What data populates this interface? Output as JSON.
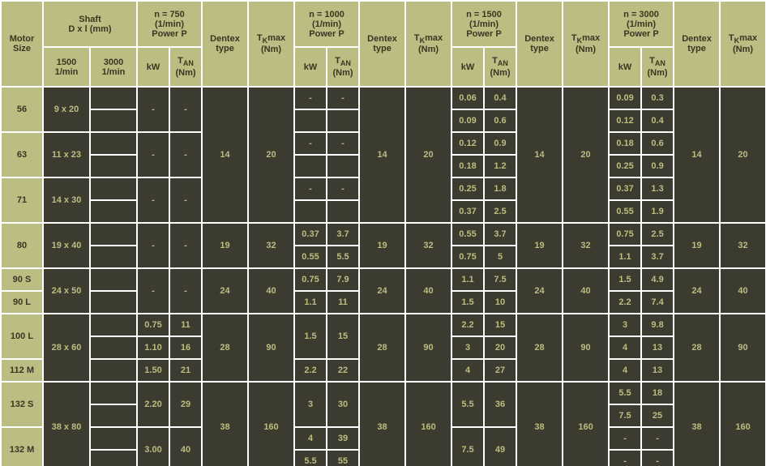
{
  "theme": {
    "header_bg": "#bcbd82",
    "header_fg": "#3b3522",
    "cell_bg": "#3b3b2f",
    "cell_fg": "#bcbd82",
    "border_spacing": 2,
    "font_family": "Verdana, Geneva, sans-serif",
    "font_size_main": 11,
    "font_size_sub": 9
  },
  "headers": {
    "motor_size": "Motor Size",
    "shaft_group": "Shaft\nD x l (mm)",
    "shaft_1500": "1500 1/min",
    "shaft_3000": "3000 1/min",
    "speed_groups": {
      "n750": "n = 750 (1/min) Power P",
      "n1000": "n = 1000 (1/min) Power P",
      "n1500": "n = 1500 (1/min) Power P",
      "n3000": "n = 3000 (1/min) Power P"
    },
    "kw": "kW",
    "tan": "T_AN (Nm)",
    "dentex": "Dentex type",
    "tkmax": "T_Kmax (Nm)"
  },
  "motor_sizes": [
    "56",
    "63",
    "71",
    "80",
    "90 S",
    "90 L",
    "100 L",
    "112 M",
    "132 S",
    "132 M"
  ],
  "shaft_1500": {
    "r56": "9 x 20",
    "r63": "11 x 23",
    "r71": "14 x 30",
    "r80": "19 x 40",
    "r90": "24 x 50",
    "r100": "28 x 60",
    "r132": "38 x 80"
  },
  "shaft_3000": {
    "r56": "",
    "r63": "",
    "r71": "",
    "r80": "",
    "r90S": "",
    "r90L": "",
    "r100L": "",
    "r112M": "",
    "r132S": "",
    "r132M": ""
  },
  "dentex_tkmax": {
    "g1": {
      "dentex": "14",
      "tkmax": "20"
    },
    "g80": {
      "dentex": "19",
      "tkmax": "32"
    },
    "g90": {
      "dentex": "24",
      "tkmax": "40"
    },
    "g100": {
      "dentex": "28",
      "tkmax": "90"
    },
    "g132": {
      "dentex": "38",
      "tkmax": "160"
    }
  },
  "n750": {
    "r56a": {
      "kw": "-",
      "tan": "-"
    },
    "r56b": {
      "kw": "",
      "tan": ""
    },
    "r63a": {
      "kw": "-",
      "tan": "-"
    },
    "r63b": {
      "kw": "",
      "tan": ""
    },
    "r71a": {
      "kw": "-",
      "tan": "-"
    },
    "r71b": {
      "kw": "",
      "tan": ""
    },
    "r80a": {
      "kw": "-",
      "tan": "-"
    },
    "r80b": {
      "kw": "",
      "tan": ""
    },
    "r90S": {
      "kw": "-",
      "tan": "-"
    },
    "r90L": {
      "kw": "",
      "tan": ""
    },
    "r100La": {
      "kw": "0.75",
      "tan": "11"
    },
    "r100Lb": {
      "kw": "1.10",
      "tan": "16"
    },
    "r112M": {
      "kw": "1.50",
      "tan": "21"
    },
    "r132Sa": {
      "kw": "",
      "tan": ""
    },
    "r132Sb": {
      "kw": "2.20",
      "tan": "29"
    },
    "r132Ma": {
      "kw": "",
      "tan": ""
    },
    "r132Mb": {
      "kw": "3.00",
      "tan": "40"
    }
  },
  "n1000": {
    "r56a": {
      "kw": "-",
      "tan": "-"
    },
    "r56b": {
      "kw": "",
      "tan": ""
    },
    "r63a": {
      "kw": "-",
      "tan": "-"
    },
    "r63b": {
      "kw": "",
      "tan": ""
    },
    "r71a": {
      "kw": "-",
      "tan": "-"
    },
    "r71b": {
      "kw": "",
      "tan": ""
    },
    "r80a": {
      "kw": "0.37",
      "tan": "3.7"
    },
    "r80b": {
      "kw": "0.55",
      "tan": "5.5"
    },
    "r90S": {
      "kw": "0.75",
      "tan": "7.9"
    },
    "r90L": {
      "kw": "1.1",
      "tan": "11"
    },
    "r100La": {
      "kw": "1.5",
      "tan": "15"
    },
    "r100Lb": {
      "kw": "",
      "tan": ""
    },
    "r112M": {
      "kw": "2.2",
      "tan": "22"
    },
    "r132Sa": {
      "kw": "3",
      "tan": "30"
    },
    "r132Sb": {
      "kw": "",
      "tan": ""
    },
    "r132Ma": {
      "kw": "4",
      "tan": "39"
    },
    "r132Mb": {
      "kw": "5.5",
      "tan": "55"
    }
  },
  "n1500": {
    "r56a": {
      "kw": "0.06",
      "tan": "0.4"
    },
    "r56b": {
      "kw": "0.09",
      "tan": "0.6"
    },
    "r63a": {
      "kw": "0.12",
      "tan": "0.9"
    },
    "r63b": {
      "kw": "0.18",
      "tan": "1.2"
    },
    "r71a": {
      "kw": "0.25",
      "tan": "1.8"
    },
    "r71b": {
      "kw": "0.37",
      "tan": "2.5"
    },
    "r80a": {
      "kw": "0.55",
      "tan": "3.7"
    },
    "r80b": {
      "kw": "0.75",
      "tan": "5"
    },
    "r90S": {
      "kw": "1.1",
      "tan": "7.5"
    },
    "r90L": {
      "kw": "1.5",
      "tan": "10"
    },
    "r100La": {
      "kw": "2.2",
      "tan": "15"
    },
    "r100Lb": {
      "kw": "3",
      "tan": "20"
    },
    "r112M": {
      "kw": "4",
      "tan": "27"
    },
    "r132Sa": {
      "kw": "5.5",
      "tan": "36"
    },
    "r132Sb": {
      "kw": "",
      "tan": ""
    },
    "r132Ma": {
      "kw": "7.5",
      "tan": "49"
    },
    "r132Mb": {
      "kw": "",
      "tan": ""
    }
  },
  "n3000": {
    "r56a": {
      "kw": "0.09",
      "tan": "0.3"
    },
    "r56b": {
      "kw": "0.12",
      "tan": "0.4"
    },
    "r63a": {
      "kw": "0.18",
      "tan": "0.6"
    },
    "r63b": {
      "kw": "0.25",
      "tan": "0.9"
    },
    "r71a": {
      "kw": "0.37",
      "tan": "1.3"
    },
    "r71b": {
      "kw": "0.55",
      "tan": "1.9"
    },
    "r80a": {
      "kw": "0.75",
      "tan": "2.5"
    },
    "r80b": {
      "kw": "1.1",
      "tan": "3.7"
    },
    "r90S": {
      "kw": "1.5",
      "tan": "4.9"
    },
    "r90L": {
      "kw": "2.2",
      "tan": "7.4"
    },
    "r100La": {
      "kw": "3",
      "tan": "9.8"
    },
    "r100Lb": {
      "kw": "4",
      "tan": "13"
    },
    "r112M": {
      "kw": "4",
      "tan": "13"
    },
    "r132Sa": {
      "kw": "5.5",
      "tan": "18"
    },
    "r132Sb": {
      "kw": "7.5",
      "tan": "25"
    },
    "r132Ma": {
      "kw": "-",
      "tan": "-"
    },
    "r132Mb": {
      "kw": "-",
      "tan": "-"
    }
  }
}
